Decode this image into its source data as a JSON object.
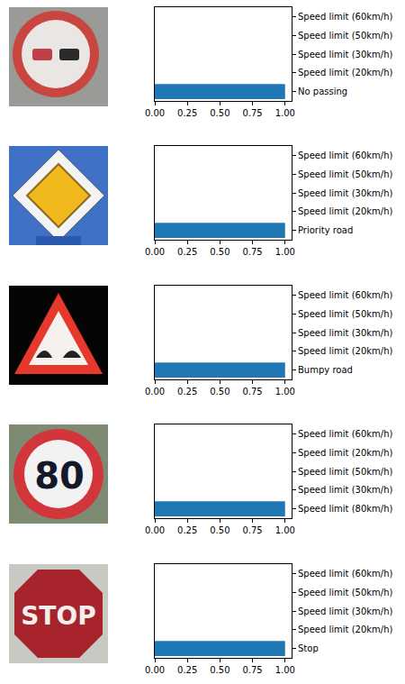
{
  "chart_data": [
    {
      "type": "bar",
      "orientation": "horizontal",
      "color": "#1f77b4",
      "categories": [
        "No passing",
        "Speed limit (20km/h)",
        "Speed limit (30km/h)",
        "Speed limit (50km/h)",
        "Speed limit (60km/h)"
      ],
      "values": [
        1.0,
        0,
        0,
        0,
        0
      ],
      "xlim": [
        0,
        1.05
      ],
      "xticks": [
        {
          "value": 0,
          "label": "0.00"
        },
        {
          "value": 0.25,
          "label": "0.25"
        },
        {
          "value": 0.5,
          "label": "0.50"
        },
        {
          "value": 0.75,
          "label": "0.75"
        },
        {
          "value": 1,
          "label": "1.00"
        }
      ]
    },
    {
      "type": "bar",
      "orientation": "horizontal",
      "color": "#1f77b4",
      "categories": [
        "Priority road",
        "Speed limit (20km/h)",
        "Speed limit (30km/h)",
        "Speed limit (50km/h)",
        "Speed limit (60km/h)"
      ],
      "values": [
        1.0,
        0,
        0,
        0,
        0
      ],
      "xlim": [
        0,
        1.05
      ],
      "xticks": [
        {
          "value": 0,
          "label": "0.00"
        },
        {
          "value": 0.25,
          "label": "0.25"
        },
        {
          "value": 0.5,
          "label": "0.50"
        },
        {
          "value": 0.75,
          "label": "0.75"
        },
        {
          "value": 1,
          "label": "1.00"
        }
      ]
    },
    {
      "type": "bar",
      "orientation": "horizontal",
      "color": "#1f77b4",
      "categories": [
        "Bumpy road",
        "Speed limit (20km/h)",
        "Speed limit (30km/h)",
        "Speed limit (50km/h)",
        "Speed limit (60km/h)"
      ],
      "values": [
        1.0,
        0,
        0,
        0,
        0
      ],
      "xlim": [
        0,
        1.05
      ],
      "xticks": [
        {
          "value": 0,
          "label": "0.00"
        },
        {
          "value": 0.25,
          "label": "0.25"
        },
        {
          "value": 0.5,
          "label": "0.50"
        },
        {
          "value": 0.75,
          "label": "0.75"
        },
        {
          "value": 1,
          "label": "1.00"
        }
      ]
    },
    {
      "type": "bar",
      "orientation": "horizontal",
      "color": "#1f77b4",
      "categories": [
        "Speed limit (80km/h)",
        "Speed limit (30km/h)",
        "Speed limit (50km/h)",
        "Speed limit (20km/h)",
        "Speed limit (60km/h)"
      ],
      "values": [
        1.0,
        0,
        0,
        0,
        0
      ],
      "xlim": [
        0,
        1.05
      ],
      "xticks": [
        {
          "value": 0,
          "label": "0.00"
        },
        {
          "value": 0.25,
          "label": "0.25"
        },
        {
          "value": 0.5,
          "label": "0.50"
        },
        {
          "value": 0.75,
          "label": "0.75"
        },
        {
          "value": 1,
          "label": "1.00"
        }
      ]
    },
    {
      "type": "bar",
      "orientation": "horizontal",
      "color": "#1f77b4",
      "categories": [
        "Stop",
        "Speed limit (20km/h)",
        "Speed limit (30km/h)",
        "Speed limit (50km/h)",
        "Speed limit (60km/h)"
      ],
      "values": [
        1.0,
        0,
        0,
        0,
        0
      ],
      "xlim": [
        0,
        1.05
      ],
      "xticks": [
        {
          "value": 0,
          "label": "0.00"
        },
        {
          "value": 0.25,
          "label": "0.25"
        },
        {
          "value": 0.5,
          "label": "0.50"
        },
        {
          "value": 0.75,
          "label": "0.75"
        },
        {
          "value": 1,
          "label": "1.00"
        }
      ]
    }
  ],
  "sign_texts": [
    null,
    null,
    null,
    "80",
    "STOP"
  ]
}
